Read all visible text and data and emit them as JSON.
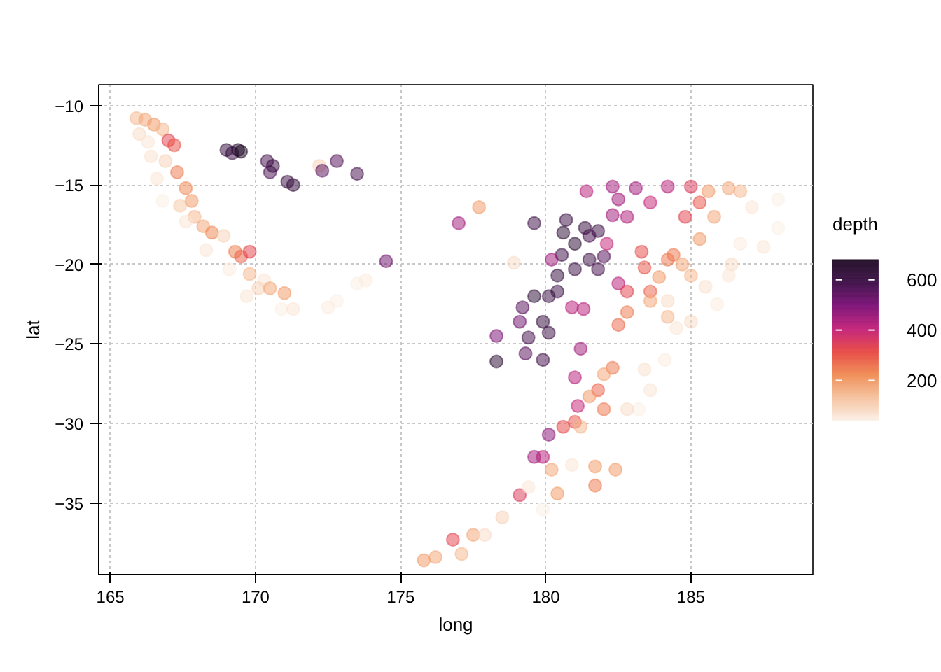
{
  "chart_data": {
    "type": "scatter",
    "xlabel": "long",
    "ylabel": "lat",
    "clabel": "depth",
    "xlim": [
      164.6,
      189.2
    ],
    "ylim": [
      -39.5,
      -8.7
    ],
    "xticks": [
      165,
      170,
      175,
      180,
      185
    ],
    "yticks": [
      -35,
      -30,
      -25,
      -20,
      -15,
      -10
    ],
    "clim": [
      40,
      680
    ],
    "cticks": [
      200,
      400,
      600
    ],
    "grid": true,
    "marker": "circle",
    "x": [
      165.9,
      166.2,
      166.5,
      166.0,
      166.3,
      166.8,
      167.0,
      167.2,
      166.4,
      166.9,
      167.3,
      167.6,
      166.6,
      166.8,
      167.4,
      167.8,
      167.9,
      167.6,
      168.2,
      168.5,
      168.3,
      168.9,
      169.3,
      169.5,
      169.8,
      169.1,
      169.8,
      170.3,
      170.1,
      170.5,
      169.7,
      171.0,
      170.9,
      171.3,
      172.8,
      172.5,
      173.5,
      173.8,
      169.0,
      169.2,
      169.4,
      169.5,
      170.4,
      170.5,
      170.6,
      171.1,
      171.3,
      172.2,
      172.3,
      172.8,
      173.5,
      174.5,
      177.0,
      177.7,
      178.9,
      179.6,
      180.7,
      181.35,
      181.8,
      180.6,
      181.0,
      181.5,
      180.55,
      181.5,
      182.0,
      181.8,
      181.0,
      180.4,
      180.4,
      180.1,
      179.6,
      179.2,
      179.1,
      179.9,
      180.1,
      179.4,
      178.3,
      178.3,
      179.3,
      179.9,
      181.4,
      182.3,
      183.1,
      184.2,
      183.6,
      182.5,
      182.8,
      182.3,
      180.2,
      180.9,
      181.3,
      181.2,
      181.0,
      181.1,
      180.1,
      179.6,
      179.9,
      182.1,
      182.5,
      183.3,
      183.4,
      184.2,
      184.4,
      184.8,
      185.0,
      185.3,
      183.6,
      182.8,
      182.5,
      182.8,
      182.3,
      181.8,
      182.0,
      181.0,
      180.6,
      179.1,
      176.8,
      181.7,
      185.6,
      186.3,
      186.7,
      185.8,
      185.3,
      184.7,
      183.9,
      185.0,
      183.6,
      184.2,
      182.0,
      181.5,
      181.2,
      180.2,
      180.4,
      181.7,
      182.4,
      177.5,
      177.1,
      178.5,
      187.1,
      188.0,
      188.0,
      187.5,
      186.4,
      186.3,
      185.9,
      185.0,
      184.5,
      184.1,
      183.6,
      183.2,
      182.8,
      180.9,
      179.9,
      179.4,
      183.4,
      185.5,
      186.7,
      184.2,
      175.8,
      176.2,
      177.9
    ],
    "values": [
      -10.8,
      -10.9,
      -11.2,
      -11.8,
      -12.3,
      -11.5,
      -12.2,
      -12.5,
      -13.2,
      -13.5,
      -14.2,
      -15.2,
      -14.6,
      -16.0,
      -16.3,
      -16.0,
      -17.0,
      -17.3,
      -17.6,
      -18.0,
      -19.1,
      -18.2,
      -19.2,
      -19.5,
      -19.2,
      -20.3,
      -20.6,
      -21.0,
      -21.5,
      -21.5,
      -22.0,
      -21.8,
      -22.8,
      -22.8,
      -22.3,
      -22.7,
      -21.2,
      -21.0,
      -12.8,
      -13.0,
      -12.8,
      -12.9,
      -13.5,
      -14.2,
      -13.8,
      -14.8,
      -15.0,
      -13.8,
      -14.1,
      -13.5,
      -14.3,
      -19.8,
      -17.4,
      -16.4,
      -19.9,
      -17.4,
      -17.2,
      -17.7,
      -17.9,
      -18.0,
      -18.7,
      -18.2,
      -19.4,
      -19.7,
      -19.5,
      -20.3,
      -20.3,
      -20.7,
      -21.7,
      -22.0,
      -22.0,
      -22.7,
      -23.6,
      -23.6,
      -24.3,
      -24.6,
      -26.1,
      -24.5,
      -25.6,
      -26.0,
      -15.4,
      -15.1,
      -15.2,
      -15.1,
      -16.1,
      -15.9,
      -17.0,
      -16.9,
      -19.7,
      -22.7,
      -22.8,
      -25.3,
      -27.1,
      -28.9,
      -30.7,
      -32.1,
      -32.1,
      -18.7,
      -21.2,
      -19.2,
      -20.2,
      -19.7,
      -19.4,
      -17.0,
      -15.1,
      -16.1,
      -21.7,
      -21.7,
      -23.8,
      -23.0,
      -26.5,
      -27.9,
      -29.1,
      -29.9,
      -30.2,
      -34.5,
      -37.3,
      -33.9,
      -15.4,
      -15.2,
      -15.4,
      -17.0,
      -18.4,
      -20.0,
      -20.8,
      -20.7,
      -22.3,
      -23.3,
      -26.9,
      -28.3,
      -30.2,
      -32.9,
      -34.4,
      -32.7,
      -32.9,
      -37.0,
      -38.2,
      -35.9,
      -16.4,
      -15.9,
      -17.7,
      -18.9,
      -20.0,
      -20.7,
      -22.5,
      -23.6,
      -24.0,
      -26.0,
      -27.9,
      -29.1,
      -29.1,
      -32.6,
      -35.4,
      -34.0,
      -26.6,
      -21.4,
      -18.7,
      -22.3,
      -38.6,
      -38.4,
      -37.0
    ],
    "cvalues": [
      150,
      180,
      200,
      80,
      60,
      150,
      330,
      300,
      70,
      100,
      250,
      230,
      60,
      40,
      120,
      200,
      150,
      60,
      180,
      230,
      60,
      100,
      240,
      280,
      330,
      50,
      150,
      60,
      100,
      180,
      60,
      200,
      40,
      60,
      40,
      50,
      40,
      50,
      620,
      600,
      660,
      680,
      580,
      570,
      600,
      600,
      620,
      100,
      550,
      560,
      580,
      520,
      450,
      200,
      80,
      600,
      600,
      620,
      600,
      640,
      650,
      580,
      600,
      600,
      560,
      580,
      600,
      620,
      600,
      600,
      640,
      550,
      520,
      620,
      600,
      580,
      650,
      500,
      550,
      580,
      420,
      450,
      450,
      420,
      400,
      450,
      430,
      450,
      450,
      420,
      420,
      450,
      420,
      400,
      480,
      450,
      420,
      400,
      420,
      320,
      300,
      250,
      250,
      330,
      350,
      300,
      280,
      330,
      270,
      250,
      250,
      280,
      250,
      300,
      320,
      350,
      330,
      250,
      200,
      180,
      150,
      180,
      200,
      180,
      200,
      150,
      180,
      150,
      180,
      200,
      150,
      180,
      200,
      200,
      200,
      180,
      150,
      100,
      60,
      40,
      40,
      60,
      80,
      60,
      50,
      80,
      60,
      50,
      60,
      40,
      80,
      60,
      40,
      60,
      70,
      70,
      50,
      80,
      200,
      180,
      80
    ]
  }
}
